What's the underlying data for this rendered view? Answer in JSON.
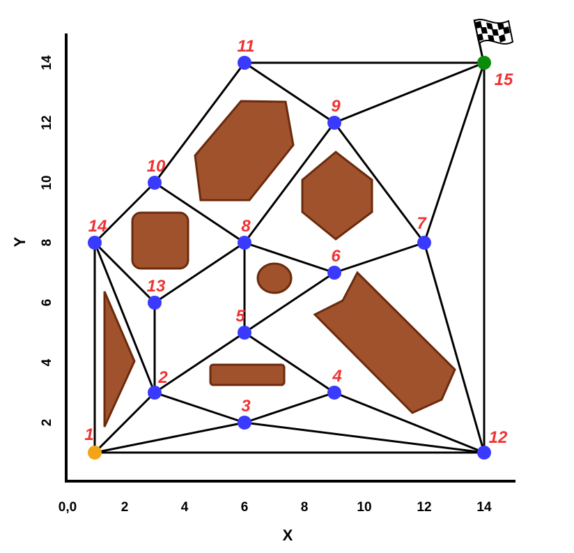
{
  "axes": {
    "x_title": "X",
    "y_title": "Y",
    "origin_label": "0,0",
    "x_ticks": [
      2,
      4,
      6,
      8,
      10,
      12,
      14
    ],
    "y_ticks": [
      2,
      4,
      6,
      8,
      10,
      12,
      14
    ],
    "xlim": [
      0,
      15
    ],
    "ylim": [
      0,
      15
    ]
  },
  "colors": {
    "node": "#3a3aff",
    "start": "#f2a516",
    "goal": "#0a8c0a",
    "obstacle_fill": "#a0522d",
    "obstacle_stroke": "#6b2a0c",
    "label": "#ee3333",
    "edge": "#000000"
  },
  "goal_icon": "checkered-flag-icon",
  "nodes": [
    {
      "id": 1,
      "label": "1",
      "x": 1,
      "y": 1,
      "kind": "start"
    },
    {
      "id": 2,
      "label": "2",
      "x": 3,
      "y": 3,
      "kind": "waypoint"
    },
    {
      "id": 3,
      "label": "3",
      "x": 6,
      "y": 2,
      "kind": "waypoint"
    },
    {
      "id": 4,
      "label": "4",
      "x": 9,
      "y": 3,
      "kind": "waypoint"
    },
    {
      "id": 5,
      "label": "5",
      "x": 6,
      "y": 5,
      "kind": "waypoint"
    },
    {
      "id": 6,
      "label": "6",
      "x": 9,
      "y": 7,
      "kind": "waypoint"
    },
    {
      "id": 7,
      "label": "7",
      "x": 12,
      "y": 8,
      "kind": "waypoint"
    },
    {
      "id": 8,
      "label": "8",
      "x": 6,
      "y": 8,
      "kind": "waypoint"
    },
    {
      "id": 9,
      "label": "9",
      "x": 9,
      "y": 12,
      "kind": "waypoint"
    },
    {
      "id": 10,
      "label": "10",
      "x": 3,
      "y": 10,
      "kind": "waypoint"
    },
    {
      "id": 11,
      "label": "11",
      "x": 6,
      "y": 14,
      "kind": "waypoint"
    },
    {
      "id": 12,
      "label": "12",
      "x": 14,
      "y": 1,
      "kind": "waypoint"
    },
    {
      "id": 13,
      "label": "13",
      "x": 3,
      "y": 6,
      "kind": "waypoint"
    },
    {
      "id": 14,
      "label": "14",
      "x": 1,
      "y": 8,
      "kind": "waypoint"
    },
    {
      "id": 15,
      "label": "15",
      "x": 14,
      "y": 14,
      "kind": "goal"
    }
  ],
  "edges": [
    [
      1,
      12
    ],
    [
      1,
      14
    ],
    [
      1,
      2
    ],
    [
      1,
      3
    ],
    [
      2,
      3
    ],
    [
      2,
      13
    ],
    [
      2,
      14
    ],
    [
      2,
      5
    ],
    [
      3,
      4
    ],
    [
      3,
      12
    ],
    [
      4,
      5
    ],
    [
      4,
      12
    ],
    [
      5,
      8
    ],
    [
      5,
      6
    ],
    [
      6,
      8
    ],
    [
      6,
      7
    ],
    [
      7,
      9
    ],
    [
      7,
      12
    ],
    [
      7,
      15
    ],
    [
      8,
      9
    ],
    [
      8,
      10
    ],
    [
      8,
      13
    ],
    [
      9,
      11
    ],
    [
      9,
      15
    ],
    [
      10,
      11
    ],
    [
      10,
      14
    ],
    [
      11,
      15
    ],
    [
      12,
      15
    ],
    [
      13,
      14
    ]
  ]
}
